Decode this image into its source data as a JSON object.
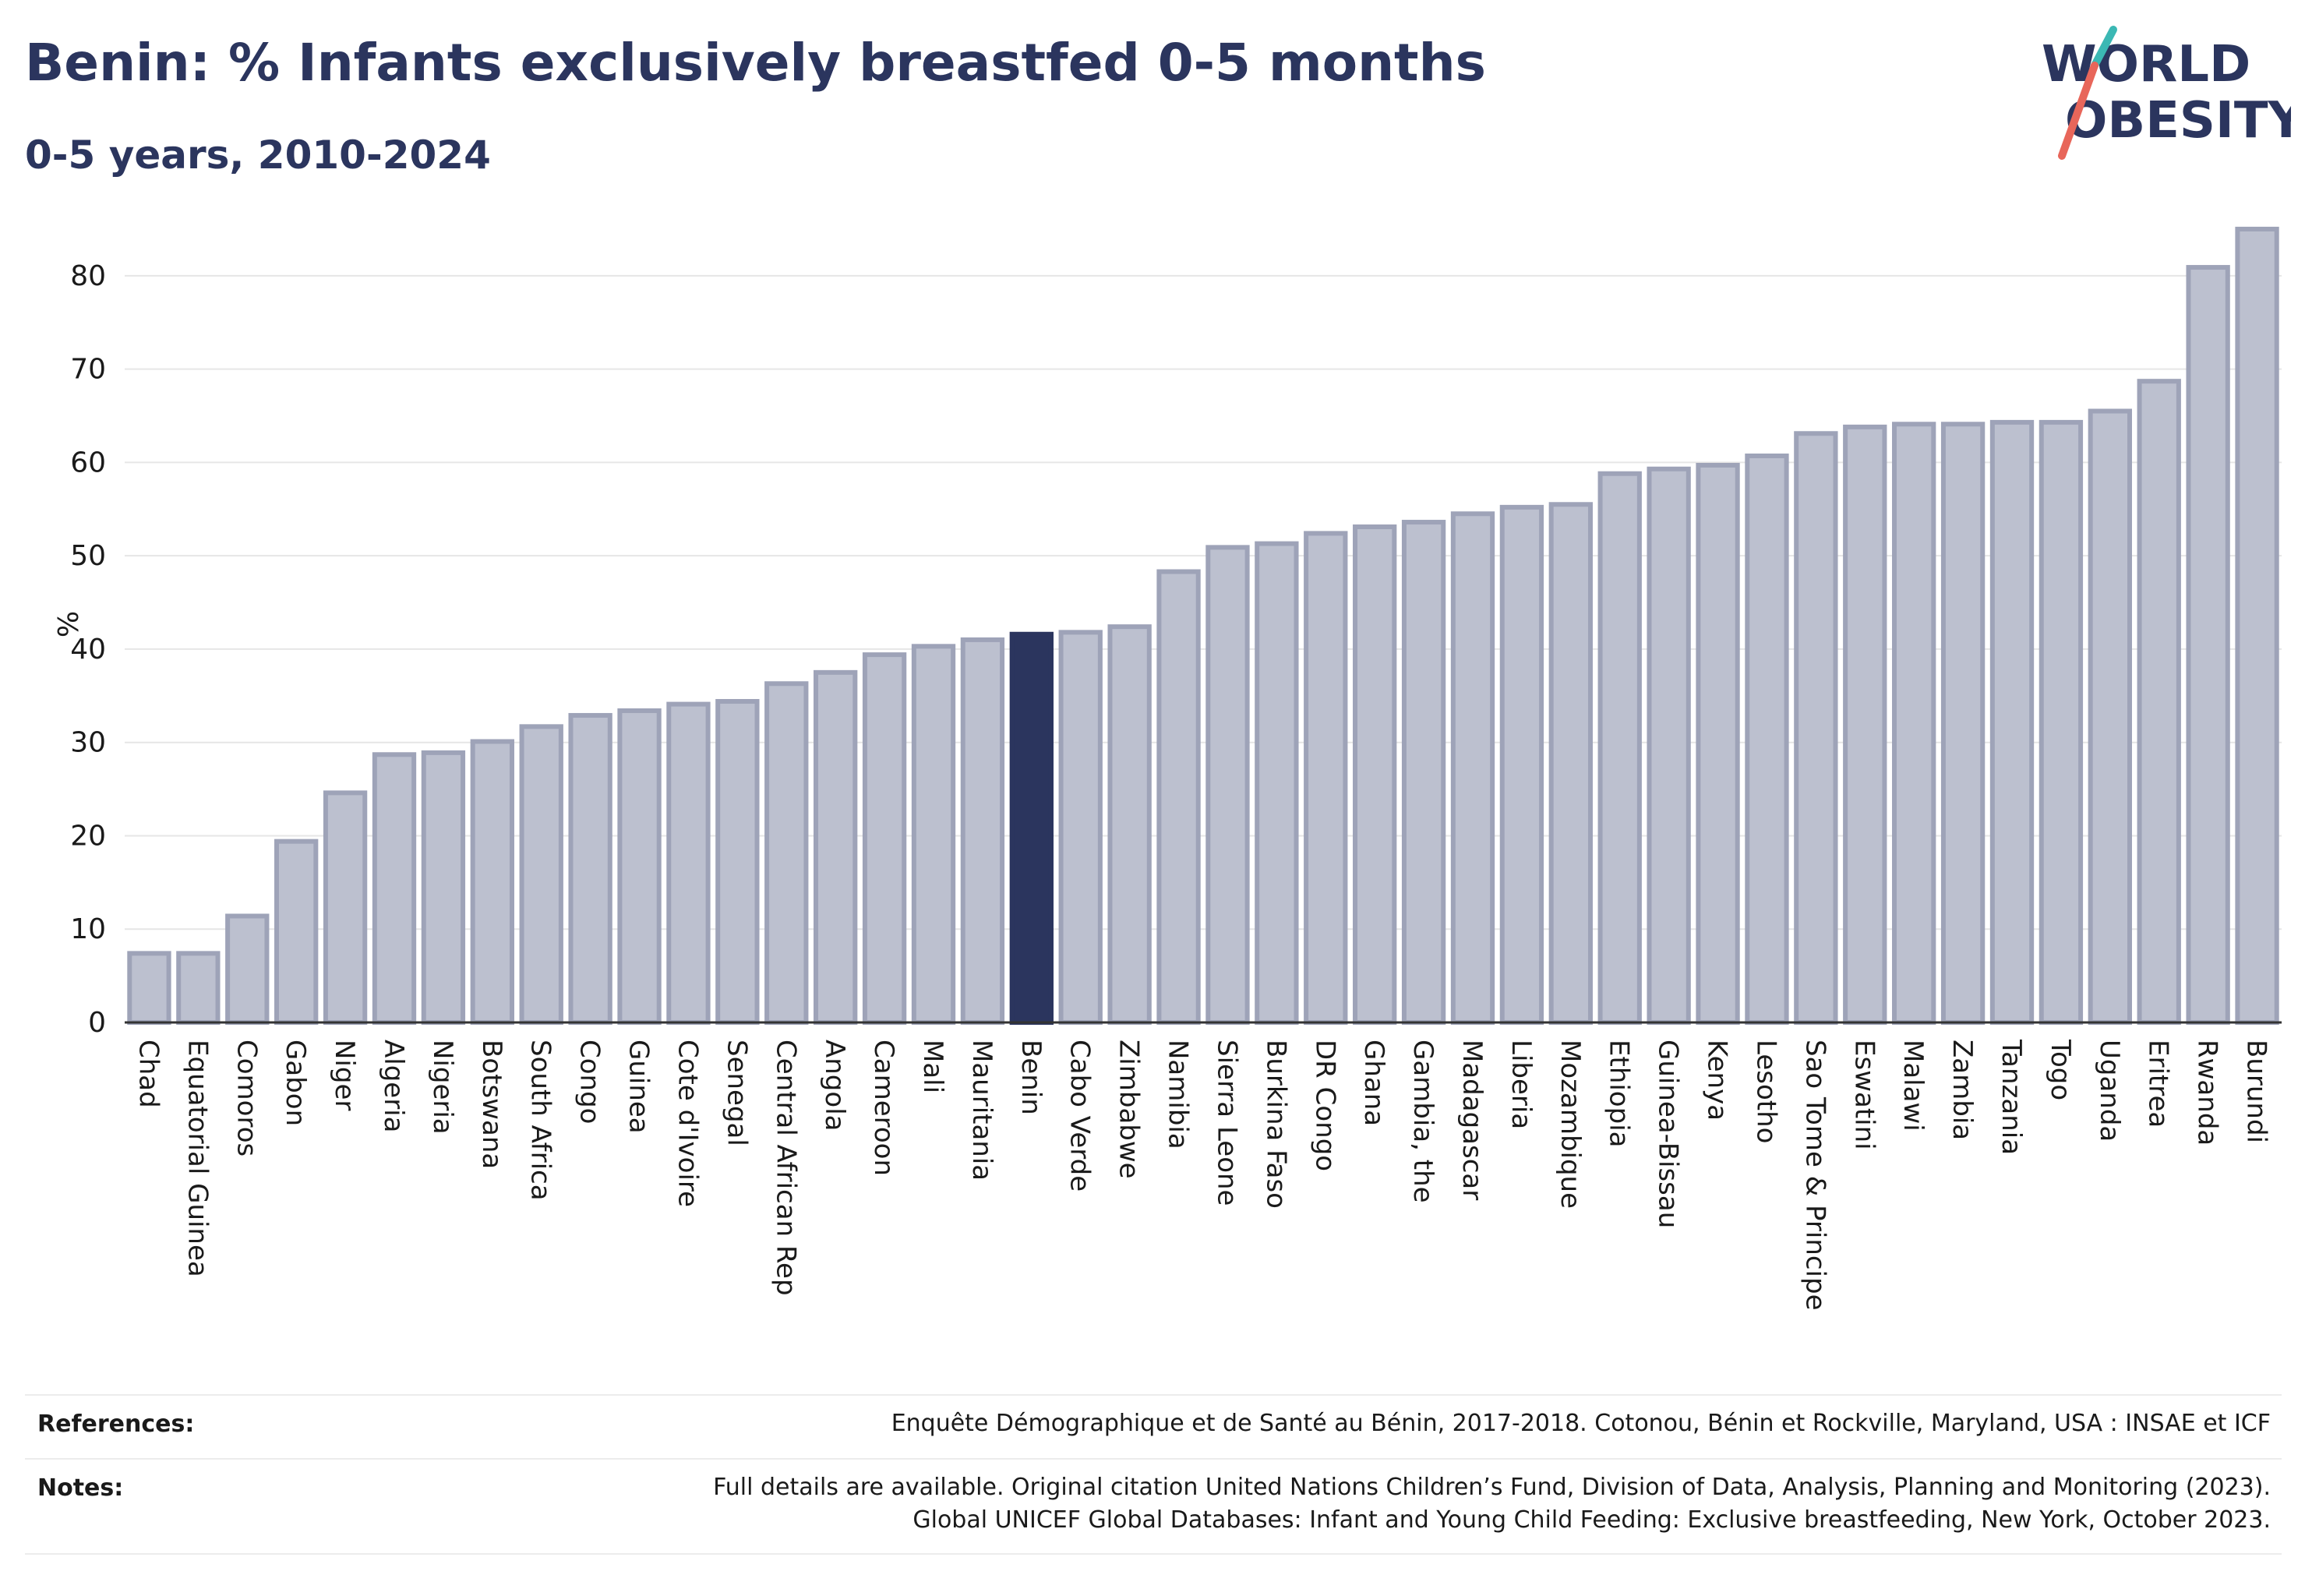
{
  "header": {
    "title": "Benin: % Infants exclusively breastfed 0-5 months",
    "subtitle": "0-5 years, 2010-2024"
  },
  "logo": {
    "line1": "WORLD",
    "line2": "OBESITY"
  },
  "colors": {
    "bar": "#bcc0cf",
    "bar_stroke": "#9ea3b8",
    "highlight": "#2b355e",
    "grid": "#e6e6e6",
    "logo_teal": "#3bb8b4",
    "logo_red": "#e8665a"
  },
  "chart_data": {
    "type": "bar",
    "ylabel": "%",
    "ylim": [
      0,
      87
    ],
    "yticks": [
      0,
      10,
      20,
      30,
      40,
      50,
      60,
      70,
      80
    ],
    "highlight": "Benin",
    "grid": true,
    "categories": [
      "Chad",
      "Equatorial Guinea",
      "Comoros",
      "Gabon",
      "Niger",
      "Algeria",
      "Nigeria",
      "Botswana",
      "South Africa",
      "Congo",
      "Guinea",
      "Cote d'Ivoire",
      "Senegal",
      "Central African Rep",
      "Angola",
      "Cameroon",
      "Mali",
      "Mauritania",
      "Benin",
      "Cabo Verde",
      "Zimbabwe",
      "Namibia",
      "Sierra Leone",
      "Burkina Faso",
      "DR Congo",
      "Ghana",
      "Gambia, the",
      "Madagascar",
      "Liberia",
      "Mozambique",
      "Ethiopia",
      "Guinea-Bissau",
      "Kenya",
      "Lesotho",
      "Sao Tome & Principe",
      "Eswatini",
      "Malawi",
      "Zambia",
      "Tanzania",
      "Togo",
      "Uganda",
      "Eritrea",
      "Rwanda",
      "Burundi"
    ],
    "values": [
      7.4,
      7.4,
      11.4,
      19.4,
      24.6,
      28.7,
      28.9,
      30.1,
      31.7,
      32.9,
      33.4,
      34.1,
      34.4,
      36.3,
      37.5,
      39.4,
      40.3,
      41,
      41.6,
      41.8,
      42.4,
      48.3,
      50.9,
      51.3,
      52.4,
      53.1,
      53.6,
      54.5,
      55.2,
      55.5,
      58.8,
      59.3,
      59.7,
      60.7,
      63.1,
      63.8,
      64.1,
      64.1,
      64.3,
      64.3,
      65.5,
      68.7,
      80.9,
      85
    ]
  },
  "footer": {
    "references_label": "References:",
    "references_text": "Enquête Démographique et de Santé au Bénin, 2017-2018. Cotonou, Bénin et Rockville, Maryland, USA : INSAE et ICF",
    "notes_label": "Notes:",
    "notes_line1": "Full details are available. Original citation United Nations Children’s Fund, Division of Data, Analysis, Planning and Monitoring (2023).",
    "notes_line2": "Global UNICEF Global Databases: Infant and Young Child Feeding: Exclusive breastfeeding, New York, October 2023."
  }
}
